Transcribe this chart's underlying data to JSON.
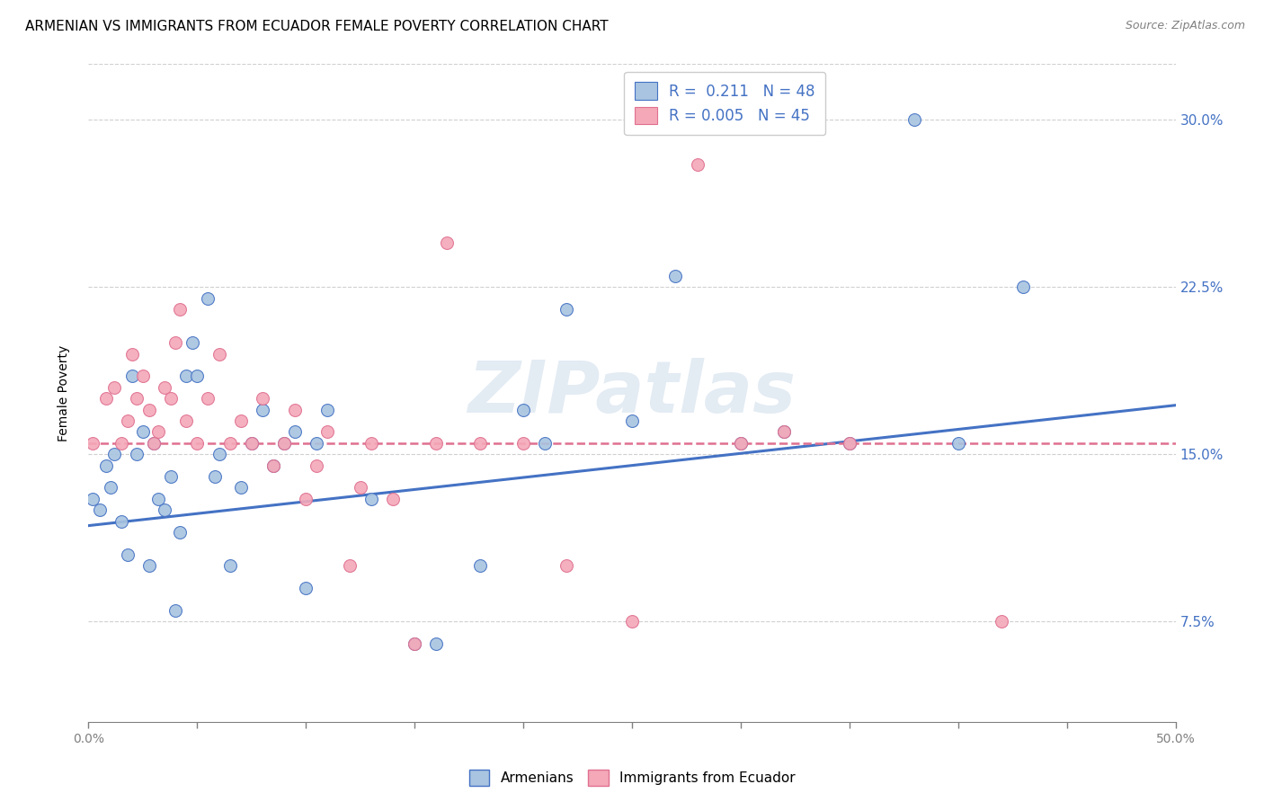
{
  "title": "ARMENIAN VS IMMIGRANTS FROM ECUADOR FEMALE POVERTY CORRELATION CHART",
  "source": "Source: ZipAtlas.com",
  "ylabel_label": "Female Poverty",
  "xlim": [
    0.0,
    0.5
  ],
  "ylim": [
    0.03,
    0.325
  ],
  "armenian_color": "#a8c4e0",
  "ecuador_color": "#f4a8b8",
  "line_armenian": "#4472c4",
  "line_ecuador": "#e07090",
  "watermark": "ZIPatlas",
  "background_color": "#ffffff",
  "grid_color": "#d0d0d0",
  "right_tick_color": "#4472c4",
  "armenians_x": [
    0.002,
    0.005,
    0.008,
    0.01,
    0.012,
    0.015,
    0.018,
    0.02,
    0.022,
    0.025,
    0.028,
    0.03,
    0.032,
    0.035,
    0.038,
    0.04,
    0.042,
    0.045,
    0.048,
    0.05,
    0.055,
    0.058,
    0.06,
    0.065,
    0.07,
    0.075,
    0.08,
    0.085,
    0.09,
    0.095,
    0.1,
    0.105,
    0.11,
    0.13,
    0.15,
    0.16,
    0.18,
    0.2,
    0.21,
    0.22,
    0.25,
    0.27,
    0.3,
    0.32,
    0.35,
    0.38,
    0.4,
    0.43
  ],
  "armenians_y": [
    0.13,
    0.125,
    0.145,
    0.135,
    0.15,
    0.12,
    0.105,
    0.185,
    0.15,
    0.16,
    0.1,
    0.155,
    0.13,
    0.125,
    0.14,
    0.08,
    0.115,
    0.185,
    0.2,
    0.185,
    0.22,
    0.14,
    0.15,
    0.1,
    0.135,
    0.155,
    0.17,
    0.145,
    0.155,
    0.16,
    0.09,
    0.155,
    0.17,
    0.13,
    0.065,
    0.065,
    0.1,
    0.17,
    0.155,
    0.215,
    0.165,
    0.23,
    0.155,
    0.16,
    0.155,
    0.3,
    0.155,
    0.225
  ],
  "ecuador_x": [
    0.002,
    0.008,
    0.012,
    0.015,
    0.018,
    0.02,
    0.022,
    0.025,
    0.028,
    0.03,
    0.032,
    0.035,
    0.038,
    0.04,
    0.042,
    0.045,
    0.05,
    0.055,
    0.06,
    0.065,
    0.07,
    0.075,
    0.08,
    0.085,
    0.09,
    0.095,
    0.1,
    0.105,
    0.11,
    0.12,
    0.125,
    0.13,
    0.14,
    0.15,
    0.16,
    0.165,
    0.18,
    0.2,
    0.22,
    0.25,
    0.28,
    0.3,
    0.32,
    0.35,
    0.42
  ],
  "ecuador_y": [
    0.155,
    0.175,
    0.18,
    0.155,
    0.165,
    0.195,
    0.175,
    0.185,
    0.17,
    0.155,
    0.16,
    0.18,
    0.175,
    0.2,
    0.215,
    0.165,
    0.155,
    0.175,
    0.195,
    0.155,
    0.165,
    0.155,
    0.175,
    0.145,
    0.155,
    0.17,
    0.13,
    0.145,
    0.16,
    0.1,
    0.135,
    0.155,
    0.13,
    0.065,
    0.155,
    0.245,
    0.155,
    0.155,
    0.1,
    0.075,
    0.28,
    0.155,
    0.16,
    0.155,
    0.075
  ],
  "arm_line_x0": 0.0,
  "arm_line_y0": 0.118,
  "arm_line_x1": 0.5,
  "arm_line_y1": 0.172,
  "ecu_line_x0": 0.0,
  "ecu_line_y0": 0.155,
  "ecu_line_x1": 0.5,
  "ecu_line_y1": 0.155,
  "yticks": [
    0.075,
    0.15,
    0.225,
    0.3
  ],
  "xtick_positions": [
    0.0,
    0.05,
    0.1,
    0.15,
    0.2,
    0.25,
    0.3,
    0.35,
    0.4,
    0.45,
    0.5
  ]
}
